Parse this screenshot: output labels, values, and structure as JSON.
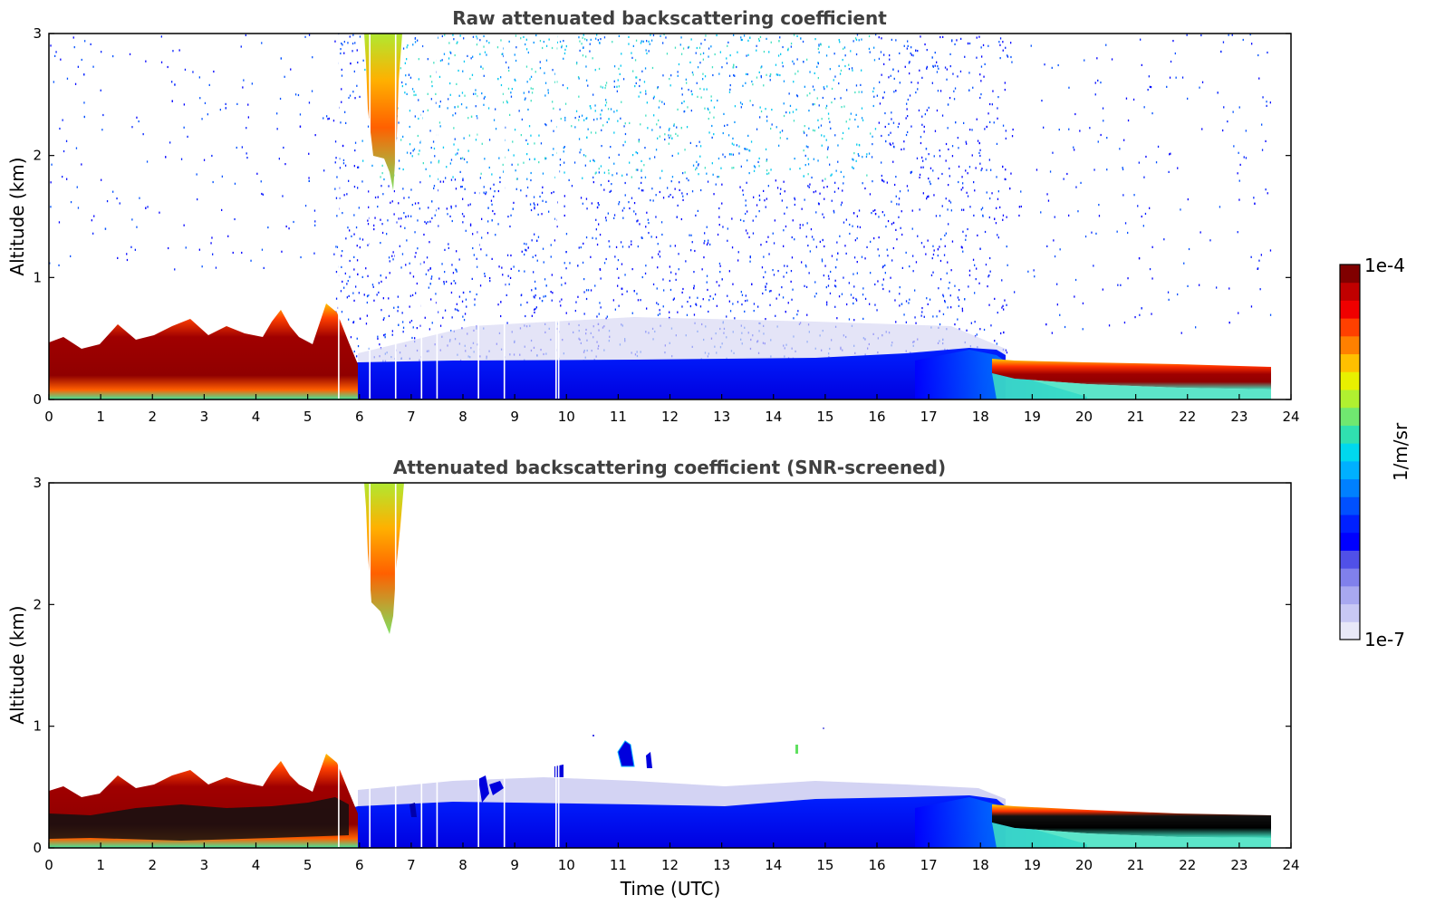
{
  "chart_data": [
    {
      "type": "heatmap",
      "title": "Raw attenuated backscattering coefficient",
      "xlabel": "",
      "ylabel": "Altitude (km)",
      "xlim": [
        0,
        24
      ],
      "ylim": [
        0,
        3
      ],
      "xticks": [
        "0",
        "1",
        "2",
        "3",
        "4",
        "5",
        "6",
        "7",
        "8",
        "9",
        "10",
        "11",
        "12",
        "13",
        "14",
        "15",
        "16",
        "17",
        "18",
        "19",
        "20",
        "21",
        "22",
        "23",
        "24"
      ],
      "yticks": [
        "0",
        "1",
        "2",
        "3"
      ],
      "data_extent_x": [
        0,
        23.6
      ],
      "layers": [
        {
          "feature": "aerosol/boundary layer top",
          "x": [
            0,
            0.5,
            1,
            1.5,
            2,
            2.5,
            3,
            3.5,
            4,
            4.5,
            5,
            5.5,
            5.8
          ],
          "y": [
            0.45,
            0.48,
            0.42,
            0.5,
            0.55,
            0.52,
            0.5,
            0.55,
            0.5,
            0.62,
            0.55,
            0.7,
            0.4
          ]
        },
        {
          "feature": "cloud plume",
          "x": [
            6.1,
            6.75
          ],
          "y": [
            1.7,
            3.0
          ]
        },
        {
          "feature": "low backscatter layer top",
          "x": [
            6,
            8,
            10,
            12,
            14,
            16,
            17,
            18
          ],
          "y": [
            0.45,
            0.42,
            0.4,
            0.4,
            0.38,
            0.38,
            0.4,
            0.42
          ]
        },
        {
          "feature": "nocturnal layer",
          "x": [
            18.3,
            19,
            20,
            21,
            22,
            23,
            23.6
          ],
          "y": [
            0.33,
            0.3,
            0.28,
            0.26,
            0.24,
            0.22,
            0.22
          ]
        }
      ],
      "gaps_x": [
        5.6,
        6.2,
        6.7,
        7.2,
        7.5,
        8.3,
        8.8,
        9.8,
        9.85
      ]
    },
    {
      "type": "heatmap",
      "title": "Attenuated backscattering coefficient (SNR-screened)",
      "xlabel": "Time (UTC)",
      "ylabel": "Altitude (km)",
      "xlim": [
        0,
        24
      ],
      "ylim": [
        0,
        3
      ],
      "xticks": [
        "0",
        "1",
        "2",
        "3",
        "4",
        "5",
        "6",
        "7",
        "8",
        "9",
        "10",
        "11",
        "12",
        "13",
        "14",
        "15",
        "16",
        "17",
        "18",
        "19",
        "20",
        "21",
        "22",
        "23",
        "24"
      ],
      "yticks": [
        "0",
        "1",
        "2",
        "3"
      ],
      "data_extent_x": [
        0,
        23.6
      ],
      "gaps_x": [
        5.6,
        6.2,
        6.7,
        7.2,
        7.5,
        8.3,
        8.8,
        9.8,
        9.85
      ]
    }
  ],
  "colorbar": {
    "label": "1/m/sr",
    "min_label": "1e-7",
    "max_label": "1e-4",
    "scale": "log",
    "colors": [
      "#e8e8f8",
      "#c8c8f4",
      "#a8a8f0",
      "#8080ec",
      "#5050e8",
      "#0000ff",
      "#0020ff",
      "#0050ff",
      "#0080ff",
      "#00b0ff",
      "#00d8ee",
      "#30e0b0",
      "#70e870",
      "#b0f030",
      "#e8f000",
      "#ffc000",
      "#ff8000",
      "#ff4000",
      "#f00000",
      "#c00000",
      "#800000"
    ]
  }
}
